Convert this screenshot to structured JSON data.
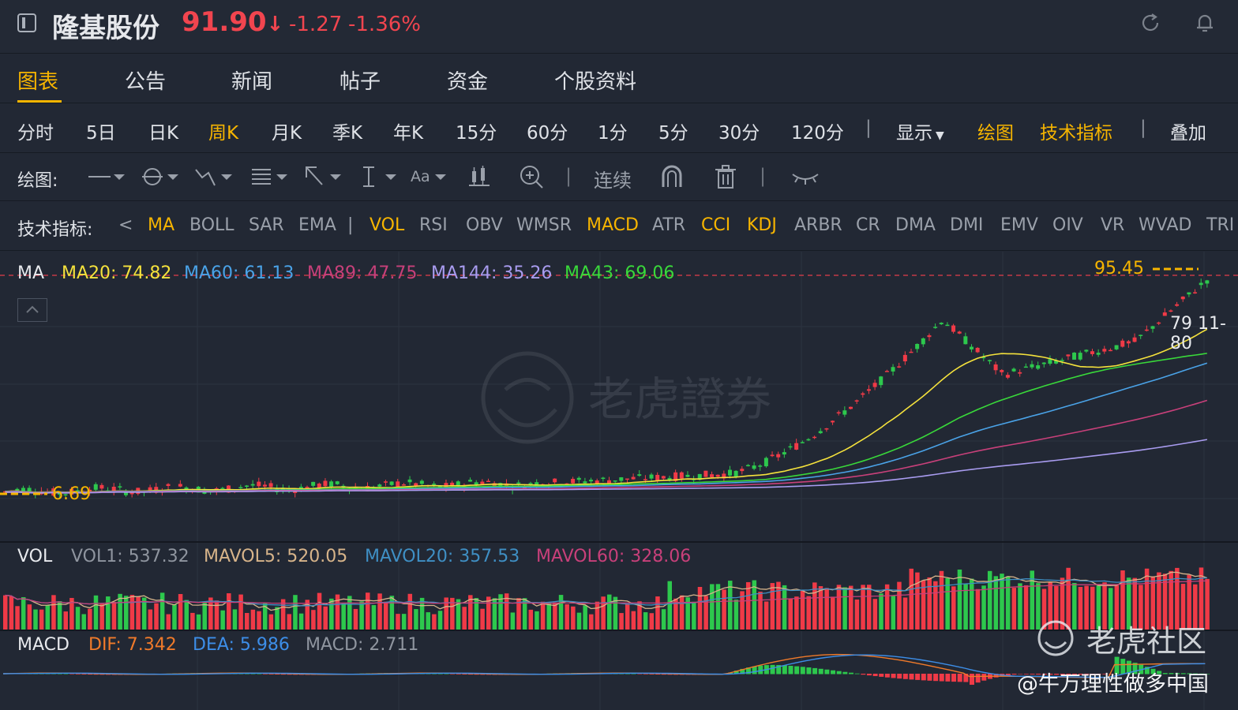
{
  "header": {
    "stock_name": "隆基股份",
    "price": "91.90",
    "price_arrow": "↓",
    "change": "-1.27",
    "change_pct": "-1.36%"
  },
  "tabs": [
    "图表",
    "公告",
    "新闻",
    "帖子",
    "资金",
    "个股资料"
  ],
  "active_tab": "图表",
  "periods": [
    "分时",
    "5日",
    "日K",
    "周K",
    "月K",
    "季K",
    "年K",
    "15分",
    "60分",
    "1分",
    "5分",
    "30分",
    "120分"
  ],
  "active_period": "周K",
  "toolbar": {
    "separator": "|",
    "display_label": "显示",
    "draw_label": "绘图",
    "tech_label": "技术指标",
    "overlay_label": "叠加"
  },
  "drawing": {
    "label": "绘图:",
    "continuous_label": "连续",
    "text_tool_label": "Aa",
    "separator": "|"
  },
  "indicators": {
    "label": "技术指标:",
    "prev_arrow": "<",
    "separator": "|",
    "items": [
      "MA",
      "BOLL",
      "SAR",
      "EMA",
      "VOL",
      "RSI",
      "OBV",
      "WMSR",
      "MACD",
      "ATR",
      "CCI",
      "KDJ",
      "ARBR",
      "CR",
      "DMA",
      "DMI",
      "EMV",
      "OIV",
      "VR",
      "WVAD",
      "TRI"
    ],
    "active": [
      "MA",
      "VOL",
      "MACD",
      "CCI",
      "KDJ"
    ]
  },
  "ma_legend": {
    "title": "MA",
    "ma20": "MA20: 74.82",
    "ma60": "MA60: 61.13",
    "ma89": "MA89: 47.75",
    "ma144": "MA144: 35.26",
    "ma43": "MA43: 69.06"
  },
  "price_labels": {
    "high": "95.45",
    "low": "6.69",
    "date": "79 11-80"
  },
  "vol_legend": {
    "title": "VOL",
    "vol1": "VOL1: 537.32",
    "mavol5": "MAVOL5: 520.05",
    "mavol20": "MAVOL20: 357.53",
    "mavol60": "MAVOL60: 328.06"
  },
  "macd_legend": {
    "title": "MACD",
    "dif": "DIF: 7.342",
    "dea": "DEA: 5.986",
    "macd": "MACD: 2.711"
  },
  "watermark": {
    "main": "老虎證券",
    "community": "老虎社区",
    "author": "@牛万理性做多中国"
  },
  "colors": {
    "up": "#f03a47",
    "down": "#2dc84d",
    "accent": "#f7b500",
    "ma20": "#f5e23c",
    "ma60": "#4aa3e8",
    "ma89": "#c8407a",
    "ma144": "#a99cf0",
    "ma43": "#39d93a",
    "dif": "#f07a2a",
    "dea": "#3d8ee8"
  },
  "chart_data": {
    "type": "candlestick",
    "period": "周K",
    "price_high": 95.45,
    "price_low": 6.69,
    "last_close": 91.9,
    "price_range": [
      6.69,
      95.45
    ],
    "series": [
      {
        "name": "MA20",
        "last": 74.82
      },
      {
        "name": "MA60",
        "last": 61.13
      },
      {
        "name": "MA89",
        "last": 47.75
      },
      {
        "name": "MA144",
        "last": 35.26
      },
      {
        "name": "MA43",
        "last": 69.06
      }
    ],
    "volume": {
      "VOL1": 537.32,
      "MAVOL5": 520.05,
      "MAVOL20": 357.53,
      "MAVOL60": 328.06
    },
    "macd": {
      "DIF": 7.342,
      "DEA": 5.986,
      "MACD": 2.711
    }
  }
}
